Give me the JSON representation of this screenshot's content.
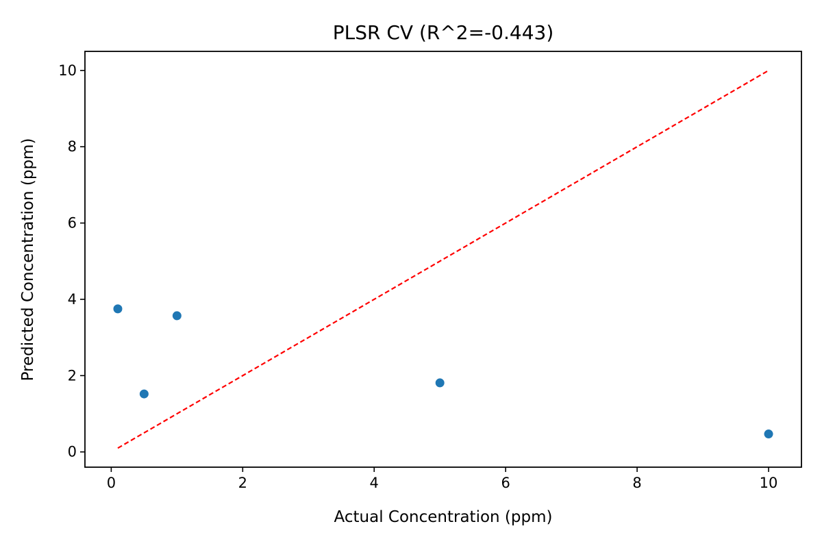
{
  "chart_data": {
    "type": "scatter",
    "title": "PLSR CV (R^2=-0.443)",
    "xlabel": "Actual Concentration (ppm)",
    "ylabel": "Predicted Concentration (ppm)",
    "xlim": [
      -0.4,
      10.5
    ],
    "ylim": [
      -0.4,
      10.5
    ],
    "x_ticks": [
      0,
      2,
      4,
      6,
      8,
      10
    ],
    "y_ticks": [
      0,
      2,
      4,
      6,
      8,
      10
    ],
    "x_tick_labels": [
      "0",
      "2",
      "4",
      "6",
      "8",
      "10"
    ],
    "y_tick_labels": [
      "0",
      "2",
      "4",
      "6",
      "8",
      "10"
    ],
    "grid": false,
    "series": [
      {
        "x": [
          0.1,
          0.5,
          1.0,
          5.0,
          10.0
        ],
        "y": [
          3.75,
          1.52,
          3.57,
          1.81,
          0.47
        ],
        "color": "#1f77b4"
      }
    ],
    "reference_line": {
      "x": [
        0.1,
        10.0
      ],
      "y": [
        0.1,
        10.0
      ],
      "color": "#ff0000",
      "style": "dashed"
    }
  }
}
